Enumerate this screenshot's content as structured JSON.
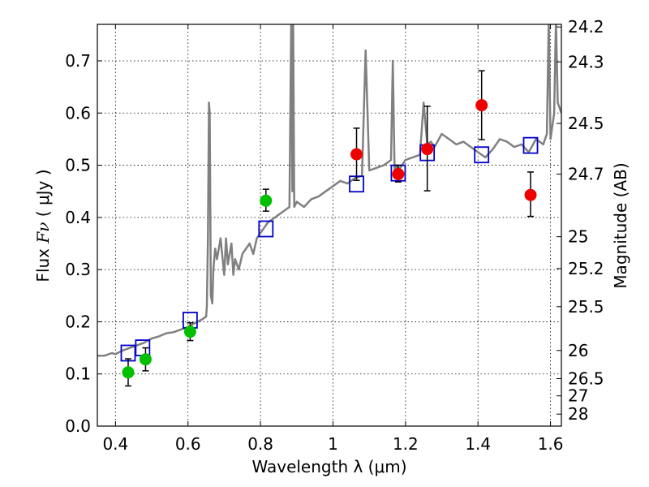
{
  "chart_data": {
    "type": "scatter",
    "xlabel": "Wavelength  λ (μm)",
    "ylabel_prefix": "Flux ",
    "ylabel_symbol": "Fν",
    "ylabel_suffix": " ( μJy )",
    "y2label": "Magnitude (AB)",
    "xlim": [
      0.35,
      1.63
    ],
    "ylim": [
      0.0,
      0.77
    ],
    "grid": true,
    "x_ticks": [
      0.4,
      0.6,
      0.8,
      1.0,
      1.2,
      1.4,
      1.6
    ],
    "x_tick_labels": [
      "0.4",
      "0.6",
      "0.8",
      "1",
      "1.2",
      "1.4",
      "1.6"
    ],
    "y_ticks": [
      0.0,
      0.1,
      0.2,
      0.3,
      0.4,
      0.5,
      0.6,
      0.7
    ],
    "y_tick_labels": [
      "0.0",
      "0.1",
      "0.2",
      "0.3",
      "0.4",
      "0.5",
      "0.6",
      "0.7"
    ],
    "mag_ticks": [
      {
        "label": "24.2",
        "flux": 0.765
      },
      {
        "label": "24.3",
        "flux": 0.698
      },
      {
        "label": "24.5",
        "flux": 0.58
      },
      {
        "label": "24.7",
        "flux": 0.483
      },
      {
        "label": "25",
        "flux": 0.363
      },
      {
        "label": "25.2",
        "flux": 0.302
      },
      {
        "label": "25.5",
        "flux": 0.229
      },
      {
        "label": "26",
        "flux": 0.145
      },
      {
        "label": "26.5",
        "flux": 0.091
      },
      {
        "label": "27",
        "flux": 0.058
      },
      {
        "label": "28",
        "flux": 0.023
      }
    ],
    "series": [
      {
        "marker": "circle",
        "color": "#00c000",
        "x": [
          0.435,
          0.483,
          0.606,
          0.815
        ],
        "y": [
          0.103,
          0.128,
          0.181,
          0.432
        ],
        "err_lo": [
          0.026,
          0.022,
          0.017,
          0.02
        ],
        "err_hi": [
          0.026,
          0.022,
          0.017,
          0.022
        ]
      },
      {
        "marker": "circle",
        "color": "#ee0000",
        "x": [
          1.065,
          1.18,
          1.26,
          1.41,
          1.545
        ],
        "y": [
          0.521,
          0.483,
          0.531,
          0.615,
          0.443
        ],
        "err_lo": [
          0.05,
          0.015,
          0.08,
          0.066,
          0.041
        ],
        "err_hi": [
          0.05,
          0.017,
          0.082,
          0.066,
          0.044
        ]
      },
      {
        "marker": "open-square",
        "color": "#0000cc",
        "x": [
          0.435,
          0.475,
          0.606,
          0.815,
          1.065,
          1.18,
          1.26,
          1.41,
          1.545
        ],
        "y": [
          0.14,
          0.15,
          0.203,
          0.378,
          0.464,
          0.485,
          0.524,
          0.52,
          0.538
        ]
      },
      {
        "marker": "line",
        "color": "#808080",
        "x": [
          0.35,
          0.37,
          0.39,
          0.4,
          0.42,
          0.44,
          0.46,
          0.48,
          0.5,
          0.52,
          0.54,
          0.56,
          0.58,
          0.6,
          0.62,
          0.64,
          0.65,
          0.652,
          0.655,
          0.658,
          0.66,
          0.663,
          0.667,
          0.67,
          0.675,
          0.68,
          0.69,
          0.7,
          0.705,
          0.71,
          0.72,
          0.725,
          0.73,
          0.74,
          0.75,
          0.76,
          0.77,
          0.78,
          0.79,
          0.8,
          0.81,
          0.82,
          0.84,
          0.86,
          0.88,
          0.885,
          0.888,
          0.89,
          0.893,
          0.9,
          0.92,
          0.94,
          0.96,
          0.98,
          1.0,
          1.02,
          1.04,
          1.06,
          1.08,
          1.09,
          1.1,
          1.12,
          1.14,
          1.16,
          1.165,
          1.17,
          1.175,
          1.18,
          1.19,
          1.2,
          1.22,
          1.24,
          1.25,
          1.26,
          1.27,
          1.28,
          1.3,
          1.32,
          1.34,
          1.36,
          1.38,
          1.4,
          1.42,
          1.44,
          1.46,
          1.48,
          1.5,
          1.52,
          1.54,
          1.56,
          1.58,
          1.59,
          1.595,
          1.6,
          1.61,
          1.615,
          1.62,
          1.63
        ],
        "y": [
          0.135,
          0.135,
          0.14,
          0.138,
          0.145,
          0.15,
          0.155,
          0.16,
          0.168,
          0.172,
          0.178,
          0.18,
          0.185,
          0.19,
          0.198,
          0.205,
          0.21,
          0.23,
          0.36,
          0.62,
          0.6,
          0.25,
          0.235,
          0.3,
          0.34,
          0.32,
          0.36,
          0.29,
          0.36,
          0.31,
          0.35,
          0.29,
          0.32,
          0.3,
          0.33,
          0.34,
          0.35,
          0.33,
          0.36,
          0.37,
          0.38,
          0.39,
          0.4,
          0.41,
          0.42,
          0.8,
          0.45,
          0.8,
          0.42,
          0.43,
          0.42,
          0.435,
          0.44,
          0.45,
          0.46,
          0.47,
          0.465,
          0.475,
          0.48,
          0.72,
          0.49,
          0.495,
          0.5,
          0.51,
          0.7,
          0.49,
          0.5,
          0.49,
          0.5,
          0.51,
          0.515,
          0.52,
          0.62,
          0.54,
          0.545,
          0.535,
          0.56,
          0.55,
          0.54,
          0.545,
          0.535,
          0.525,
          0.515,
          0.53,
          0.55,
          0.545,
          0.535,
          0.54,
          0.525,
          0.55,
          0.54,
          0.56,
          0.78,
          0.55,
          0.6,
          0.78,
          0.62,
          0.6
        ]
      }
    ]
  }
}
